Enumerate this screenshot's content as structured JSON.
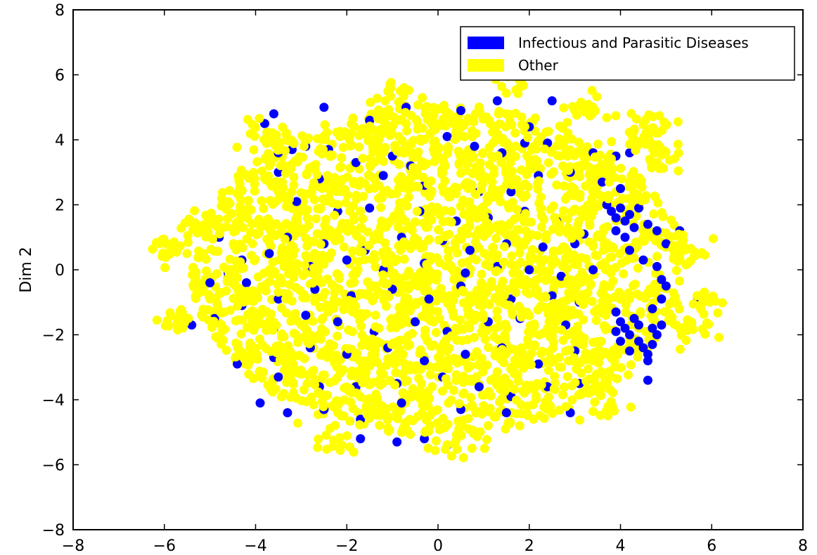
{
  "chart_data": {
    "type": "scatter",
    "title": "",
    "xlabel": "",
    "ylabel": "Dim 2",
    "xlim": [
      -8,
      8
    ],
    "ylim": [
      -8,
      8
    ],
    "xticks": [
      -8,
      -6,
      -4,
      -2,
      0,
      2,
      4,
      6,
      8
    ],
    "yticks": [
      -8,
      -6,
      -4,
      -2,
      0,
      2,
      4,
      6,
      8
    ],
    "xtick_labels": [
      "−8",
      "−6",
      "−4",
      "−2",
      "0",
      "2",
      "4",
      "6",
      "8"
    ],
    "ytick_labels": [
      "−8",
      "−6",
      "−4",
      "−2",
      "0",
      "2",
      "4",
      "6",
      "8"
    ],
    "grid": false,
    "legend_position": "top-right",
    "series": [
      {
        "name": "Infectious and Parasitic Diseases",
        "color": "#0000ff",
        "points": [
          [
            -3.8,
            4.5
          ],
          [
            -3.6,
            4.8
          ],
          [
            -2.5,
            5.0
          ],
          [
            -1.5,
            4.6
          ],
          [
            -0.7,
            5.0
          ],
          [
            0.5,
            4.9
          ],
          [
            1.3,
            5.2
          ],
          [
            2.0,
            4.4
          ],
          [
            2.5,
            5.2
          ],
          [
            -3.5,
            3.6
          ],
          [
            -3.2,
            3.7
          ],
          [
            -2.9,
            3.8
          ],
          [
            -2.4,
            3.7
          ],
          [
            -1.8,
            3.3
          ],
          [
            -1.0,
            3.5
          ],
          [
            -0.6,
            3.2
          ],
          [
            0.2,
            4.1
          ],
          [
            0.8,
            3.8
          ],
          [
            1.4,
            3.6
          ],
          [
            1.9,
            3.9
          ],
          [
            2.4,
            3.9
          ],
          [
            3.4,
            3.6
          ],
          [
            3.9,
            3.5
          ],
          [
            4.2,
            3.6
          ],
          [
            -3.5,
            3.0
          ],
          [
            -2.6,
            2.8
          ],
          [
            -1.2,
            2.9
          ],
          [
            -0.3,
            2.6
          ],
          [
            0.9,
            2.4
          ],
          [
            1.6,
            2.4
          ],
          [
            2.2,
            2.9
          ],
          [
            2.9,
            3.0
          ],
          [
            3.6,
            2.7
          ],
          [
            4.0,
            2.5
          ],
          [
            -3.1,
            2.1
          ],
          [
            -2.2,
            1.8
          ],
          [
            -1.5,
            1.9
          ],
          [
            -0.4,
            1.8
          ],
          [
            0.4,
            1.5
          ],
          [
            1.1,
            1.6
          ],
          [
            1.9,
            1.8
          ],
          [
            2.6,
            1.5
          ],
          [
            3.2,
            1.1
          ],
          [
            -3.3,
            1.0
          ],
          [
            -2.5,
            0.8
          ],
          [
            -1.6,
            0.6
          ],
          [
            -0.8,
            1.0
          ],
          [
            0.1,
            0.9
          ],
          [
            0.7,
            0.6
          ],
          [
            1.5,
            0.8
          ],
          [
            2.3,
            0.7
          ],
          [
            3.0,
            0.8
          ],
          [
            -4.8,
            1.0
          ],
          [
            -4.3,
            0.3
          ],
          [
            -3.7,
            0.5
          ],
          [
            -2.8,
            0.1
          ],
          [
            -2.0,
            0.3
          ],
          [
            -1.2,
            0.0
          ],
          [
            -0.3,
            0.2
          ],
          [
            0.6,
            -0.1
          ],
          [
            1.3,
            0.1
          ],
          [
            2.0,
            0.0
          ],
          [
            2.7,
            -0.2
          ],
          [
            3.4,
            0.0
          ],
          [
            -5.0,
            -0.4
          ],
          [
            -4.6,
            -0.1
          ],
          [
            -4.2,
            -0.4
          ],
          [
            -3.5,
            -0.9
          ],
          [
            -2.7,
            -0.6
          ],
          [
            -1.9,
            -0.8
          ],
          [
            -1.0,
            -0.6
          ],
          [
            -0.2,
            -0.9
          ],
          [
            0.5,
            -0.5
          ],
          [
            1.6,
            -0.9
          ],
          [
            2.5,
            -0.8
          ],
          [
            3.1,
            -1.0
          ],
          [
            -5.4,
            -1.7
          ],
          [
            -4.9,
            -1.5
          ],
          [
            -4.3,
            -1.1
          ],
          [
            -3.6,
            -1.8
          ],
          [
            -2.9,
            -1.4
          ],
          [
            -2.2,
            -1.6
          ],
          [
            -1.4,
            -1.9
          ],
          [
            -0.5,
            -1.6
          ],
          [
            0.2,
            -1.9
          ],
          [
            1.1,
            -1.6
          ],
          [
            1.8,
            -1.5
          ],
          [
            2.8,
            -1.7
          ],
          [
            -4.4,
            -2.9
          ],
          [
            -3.6,
            -2.7
          ],
          [
            -2.8,
            -2.4
          ],
          [
            -2.0,
            -2.6
          ],
          [
            -1.1,
            -2.4
          ],
          [
            -0.3,
            -2.8
          ],
          [
            0.6,
            -2.6
          ],
          [
            1.4,
            -2.4
          ],
          [
            2.2,
            -2.9
          ],
          [
            3.0,
            -2.5
          ],
          [
            -3.5,
            -3.3
          ],
          [
            -2.6,
            -3.6
          ],
          [
            -1.8,
            -3.6
          ],
          [
            -0.9,
            -3.5
          ],
          [
            0.1,
            -3.3
          ],
          [
            0.9,
            -3.6
          ],
          [
            1.6,
            -3.9
          ],
          [
            2.4,
            -3.6
          ],
          [
            3.1,
            -3.5
          ],
          [
            -3.9,
            -4.1
          ],
          [
            -3.3,
            -4.4
          ],
          [
            -2.5,
            -4.3
          ],
          [
            -1.7,
            -4.6
          ],
          [
            -0.8,
            -4.1
          ],
          [
            0.5,
            -4.3
          ],
          [
            1.5,
            -4.4
          ],
          [
            2.9,
            -4.4
          ],
          [
            -1.7,
            -5.2
          ],
          [
            -0.9,
            -5.3
          ],
          [
            -0.3,
            -5.2
          ],
          [
            0.2,
            -5.4
          ],
          [
            3.7,
            2.0
          ],
          [
            3.8,
            1.8
          ],
          [
            3.9,
            1.6
          ],
          [
            4.0,
            1.9
          ],
          [
            4.1,
            1.5
          ],
          [
            4.2,
            1.7
          ],
          [
            4.3,
            1.3
          ],
          [
            3.9,
            1.2
          ],
          [
            4.1,
            1.0
          ],
          [
            4.4,
            1.9
          ],
          [
            4.6,
            1.4
          ],
          [
            4.8,
            1.2
          ],
          [
            5.0,
            0.8
          ],
          [
            4.2,
            0.6
          ],
          [
            4.5,
            0.3
          ],
          [
            4.8,
            0.1
          ],
          [
            4.9,
            -0.3
          ],
          [
            5.0,
            -0.5
          ],
          [
            4.9,
            -0.9
          ],
          [
            4.7,
            -1.2
          ],
          [
            3.9,
            -1.3
          ],
          [
            4.0,
            -1.6
          ],
          [
            4.1,
            -1.8
          ],
          [
            4.2,
            -2.0
          ],
          [
            4.3,
            -1.5
          ],
          [
            4.4,
            -2.2
          ],
          [
            4.5,
            -2.4
          ],
          [
            4.6,
            -2.6
          ],
          [
            4.7,
            -2.3
          ],
          [
            4.8,
            -2.0
          ],
          [
            4.9,
            -1.7
          ],
          [
            4.2,
            -2.5
          ],
          [
            4.0,
            -2.2
          ],
          [
            3.9,
            -1.9
          ],
          [
            4.6,
            -2.8
          ],
          [
            4.7,
            -1.8
          ],
          [
            4.4,
            -1.7
          ],
          [
            4.6,
            -3.4
          ],
          [
            5.3,
            1.2
          ],
          [
            5.7,
            -0.9
          ]
        ]
      },
      {
        "name": "Other",
        "color": "#ffff00",
        "region": {
          "center": [
            0.0,
            0.0
          ],
          "x_radius": 5.4,
          "y_radius": 5.1,
          "count": 2600
        },
        "extra_clusters": [
          {
            "center": [
              -5.9,
              0.6
            ],
            "spread": 0.25,
            "count": 25
          },
          {
            "center": [
              -5.4,
              1.3
            ],
            "spread": 0.2,
            "count": 15
          },
          {
            "center": [
              -5.6,
              -1.5
            ],
            "spread": 0.25,
            "count": 20
          },
          {
            "center": [
              -3.8,
              4.0
            ],
            "spread": 0.25,
            "count": 25
          },
          {
            "center": [
              4.6,
              4.3
            ],
            "spread": 0.3,
            "count": 35
          },
          {
            "center": [
              4.8,
              3.5
            ],
            "spread": 0.25,
            "count": 20
          },
          {
            "center": [
              5.4,
              0.6
            ],
            "spread": 0.3,
            "count": 30
          },
          {
            "center": [
              5.8,
              -0.9
            ],
            "spread": 0.2,
            "count": 15
          },
          {
            "center": [
              5.3,
              -2.0
            ],
            "spread": 0.3,
            "count": 20
          },
          {
            "center": [
              3.2,
              5.0
            ],
            "spread": 0.25,
            "count": 20
          },
          {
            "center": [
              1.5,
              5.6
            ],
            "spread": 0.2,
            "count": 12
          },
          {
            "center": [
              -1.0,
              5.4
            ],
            "spread": 0.25,
            "count": 15
          },
          {
            "center": [
              0.5,
              -5.4
            ],
            "spread": 0.3,
            "count": 20
          },
          {
            "center": [
              -2.3,
              -5.2
            ],
            "spread": 0.3,
            "count": 15
          },
          {
            "center": [
              3.6,
              -4.2
            ],
            "spread": 0.3,
            "count": 15
          }
        ]
      }
    ]
  }
}
